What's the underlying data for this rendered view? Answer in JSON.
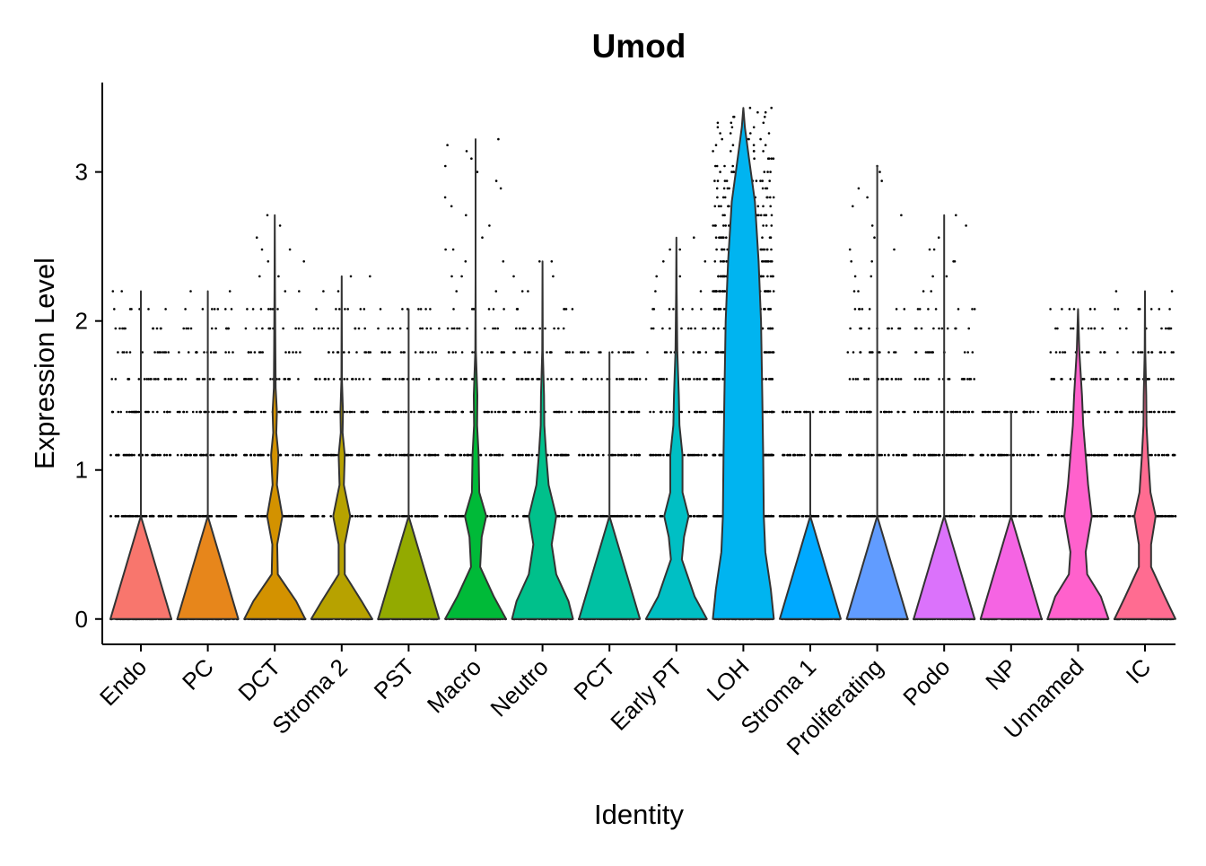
{
  "chart_data": {
    "type": "violin",
    "title": "Umod",
    "xlabel": "Identity",
    "ylabel": "Expression Level",
    "ylim": [
      -0.17,
      3.6
    ],
    "yticks": [
      0,
      1,
      2,
      3
    ],
    "ytick_labels": [
      "0",
      "1",
      "2",
      "3"
    ],
    "legend": "none",
    "jitter_points": true,
    "expression_levels": [
      0,
      0.69,
      1.1,
      1.39,
      1.61,
      1.79,
      1.95,
      2.08,
      2.2,
      2.3,
      2.4,
      2.48,
      2.56,
      2.64,
      2.71,
      2.77,
      2.83,
      2.89,
      2.94,
      3.0,
      3.04,
      3.09,
      3.14,
      3.18,
      3.22,
      3.26,
      3.3,
      3.33,
      3.37,
      3.4,
      3.43
    ],
    "categories": [
      "Endo",
      "PC",
      "DCT",
      "Stroma 2",
      "PST",
      "Macro",
      "Neutro",
      "PCT",
      "Early PT",
      "LOH",
      "Stroma 1",
      "Proliferating",
      "Podo",
      "NP",
      "Unnamed",
      "IC"
    ],
    "series": [
      {
        "category": "Endo",
        "color": "#F8766D",
        "max": 2.2,
        "density": [
          [
            0,
            1.0
          ],
          [
            0.69,
            0.0
          ],
          [
            1.1,
            0.0
          ]
        ]
      },
      {
        "category": "PC",
        "color": "#E7861B",
        "max": 2.2,
        "density": [
          [
            0,
            1.0
          ],
          [
            0.69,
            0.0
          ],
          [
            1.1,
            0.0
          ]
        ]
      },
      {
        "category": "DCT",
        "color": "#D39200",
        "max": 2.71,
        "density": [
          [
            0,
            1.0
          ],
          [
            0.12,
            0.7
          ],
          [
            0.3,
            0.1
          ],
          [
            0.5,
            0.08
          ],
          [
            0.69,
            0.25
          ],
          [
            0.9,
            0.07
          ],
          [
            1.1,
            0.12
          ],
          [
            1.25,
            0.05
          ],
          [
            1.39,
            0.07
          ],
          [
            1.55,
            0.03
          ],
          [
            1.8,
            0.02
          ],
          [
            2.2,
            0.01
          ],
          [
            2.71,
            0.0
          ]
        ]
      },
      {
        "category": "Stroma 2",
        "color": "#B7A200",
        "max": 2.3,
        "density": [
          [
            0,
            1.0
          ],
          [
            0.12,
            0.65
          ],
          [
            0.3,
            0.1
          ],
          [
            0.5,
            0.1
          ],
          [
            0.69,
            0.28
          ],
          [
            0.9,
            0.07
          ],
          [
            1.1,
            0.1
          ],
          [
            1.25,
            0.03
          ],
          [
            1.39,
            0.04
          ],
          [
            1.6,
            0.01
          ],
          [
            2.3,
            0.0
          ]
        ]
      },
      {
        "category": "PST",
        "color": "#93AA00",
        "max": 2.08,
        "density": [
          [
            0,
            1.0
          ],
          [
            0.69,
            0.0
          ],
          [
            1.1,
            0.0
          ]
        ]
      },
      {
        "category": "Macro",
        "color": "#00BA38",
        "max": 3.22,
        "density": [
          [
            0,
            1.0
          ],
          [
            0.15,
            0.6
          ],
          [
            0.35,
            0.15
          ],
          [
            0.55,
            0.2
          ],
          [
            0.69,
            0.35
          ],
          [
            0.85,
            0.12
          ],
          [
            1.1,
            0.1
          ],
          [
            1.3,
            0.05
          ],
          [
            1.5,
            0.06
          ],
          [
            1.8,
            0.01
          ],
          [
            2.3,
            0.0
          ],
          [
            3.22,
            0.0
          ]
        ]
      },
      {
        "category": "Neutro",
        "color": "#00C08B",
        "max": 2.4,
        "density": [
          [
            0,
            1.0
          ],
          [
            0.12,
            0.85
          ],
          [
            0.3,
            0.45
          ],
          [
            0.5,
            0.3
          ],
          [
            0.69,
            0.45
          ],
          [
            0.9,
            0.2
          ],
          [
            1.1,
            0.12
          ],
          [
            1.3,
            0.06
          ],
          [
            1.5,
            0.05
          ],
          [
            1.8,
            0.01
          ],
          [
            2.4,
            0.0
          ]
        ]
      },
      {
        "category": "PCT",
        "color": "#00C1A3",
        "max": 1.79,
        "density": [
          [
            0,
            1.0
          ],
          [
            0.69,
            0.0
          ],
          [
            1.1,
            0.0
          ]
        ]
      },
      {
        "category": "Early PT",
        "color": "#00BFC4",
        "max": 2.56,
        "density": [
          [
            0,
            1.0
          ],
          [
            0.15,
            0.6
          ],
          [
            0.4,
            0.18
          ],
          [
            0.55,
            0.25
          ],
          [
            0.69,
            0.4
          ],
          [
            0.85,
            0.2
          ],
          [
            1.1,
            0.2
          ],
          [
            1.3,
            0.1
          ],
          [
            1.5,
            0.08
          ],
          [
            1.8,
            0.03
          ],
          [
            2.2,
            0.01
          ],
          [
            2.56,
            0.0
          ]
        ]
      },
      {
        "category": "LOH",
        "color": "#00B4F0",
        "max": 3.43,
        "density": [
          [
            0,
            1.0
          ],
          [
            0.2,
            0.9
          ],
          [
            0.45,
            0.72
          ],
          [
            0.69,
            0.67
          ],
          [
            1.1,
            0.65
          ],
          [
            1.5,
            0.62
          ],
          [
            2.0,
            0.58
          ],
          [
            2.4,
            0.5
          ],
          [
            2.8,
            0.38
          ],
          [
            3.1,
            0.18
          ],
          [
            3.3,
            0.05
          ],
          [
            3.43,
            0.0
          ]
        ]
      },
      {
        "category": "Stroma 1",
        "color": "#00A9FF",
        "max": 1.39,
        "density": [
          [
            0,
            1.0
          ],
          [
            0.69,
            0.0
          ],
          [
            1.1,
            0.0
          ]
        ]
      },
      {
        "category": "Proliferating",
        "color": "#619CFF",
        "max": 3.04,
        "density": [
          [
            0,
            1.0
          ],
          [
            0.69,
            0.0
          ],
          [
            1.1,
            0.0
          ]
        ]
      },
      {
        "category": "Podo",
        "color": "#DB72FB",
        "max": 2.71,
        "density": [
          [
            0,
            1.0
          ],
          [
            0.69,
            0.0
          ],
          [
            1.1,
            0.0
          ]
        ]
      },
      {
        "category": "NP",
        "color": "#F564E3",
        "max": 1.39,
        "density": [
          [
            0,
            1.0
          ],
          [
            0.69,
            0.0
          ],
          [
            1.1,
            0.0
          ]
        ]
      },
      {
        "category": "Unnamed",
        "color": "#FF61CC",
        "max": 2.08,
        "density": [
          [
            0,
            1.0
          ],
          [
            0.15,
            0.75
          ],
          [
            0.3,
            0.3
          ],
          [
            0.45,
            0.25
          ],
          [
            0.69,
            0.45
          ],
          [
            0.9,
            0.33
          ],
          [
            1.1,
            0.25
          ],
          [
            1.3,
            0.17
          ],
          [
            1.5,
            0.13
          ],
          [
            1.8,
            0.04
          ],
          [
            2.08,
            0.0
          ]
        ]
      },
      {
        "category": "IC",
        "color": "#FF6C91",
        "max": 2.2,
        "density": [
          [
            0,
            1.0
          ],
          [
            0.15,
            0.65
          ],
          [
            0.35,
            0.2
          ],
          [
            0.5,
            0.2
          ],
          [
            0.69,
            0.35
          ],
          [
            0.85,
            0.18
          ],
          [
            1.1,
            0.1
          ],
          [
            1.3,
            0.05
          ],
          [
            1.5,
            0.04
          ],
          [
            1.8,
            0.01
          ],
          [
            2.2,
            0.0
          ]
        ]
      }
    ]
  }
}
